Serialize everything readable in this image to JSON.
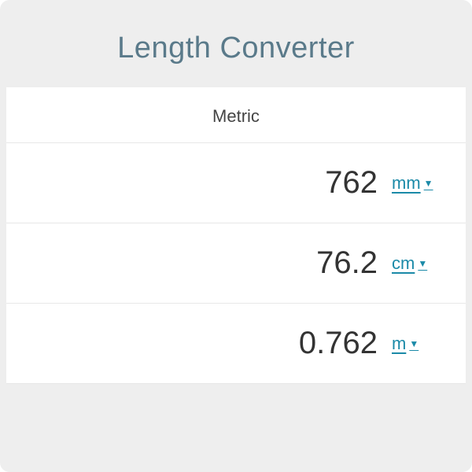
{
  "header": {
    "title": "Length Converter"
  },
  "section": {
    "label": "Metric"
  },
  "rows": [
    {
      "value": "762",
      "unit": "mm"
    },
    {
      "value": "76.2",
      "unit": "cm"
    },
    {
      "value": "0.762",
      "unit": "m"
    }
  ],
  "colors": {
    "background": "#eeeeee",
    "content_bg": "#ffffff",
    "title_color": "#5a7a8a",
    "text_color": "#333333",
    "link_color": "#1b8aa8",
    "border_color": "#e8e8e8"
  }
}
